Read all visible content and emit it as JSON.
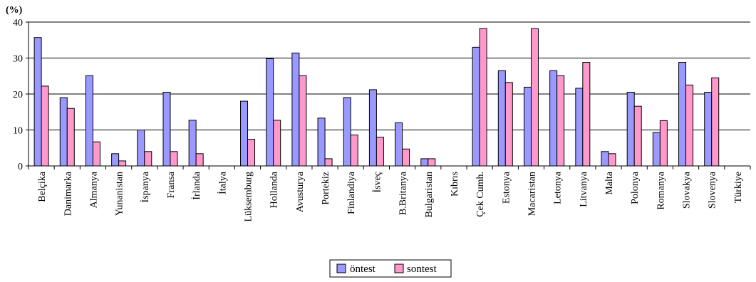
{
  "chart_data": {
    "type": "bar",
    "title": "",
    "xlabel": "",
    "ylabel": "(%)",
    "ylim": [
      0,
      40
    ],
    "yticks": [
      0,
      10,
      20,
      30,
      40
    ],
    "grid": true,
    "legend_position": "bottom-center",
    "categories": [
      "Belçika",
      "Danimarka",
      "Almanya",
      "Yunanistan",
      "İspanya",
      "Fransa",
      "İrlanda",
      "İtalya",
      "Lüksemburg",
      "Hollanda",
      "Avusturya",
      "Portekiz",
      "Finlandiya",
      "İsveç",
      "B.Britanya",
      "Bulgaristan",
      "Kıbrıs",
      "Çek Cumh.",
      "Estonya",
      "Macaristan",
      "Letonya",
      "Litvanya",
      "Malta",
      "Polonya",
      "Romanya",
      "Slovakya",
      "Slovenya",
      "Türkiye"
    ],
    "series": [
      {
        "name": "öntest",
        "color": "#9999ff",
        "values": [
          35.7,
          19.0,
          25.1,
          3.4,
          10.0,
          20.5,
          12.7,
          0,
          18.0,
          29.8,
          31.4,
          13.3,
          19.0,
          21.2,
          12.0,
          2.0,
          0,
          33.0,
          26.5,
          21.9,
          26.5,
          21.6,
          4.0,
          20.5,
          9.3,
          28.8,
          20.5,
          0
        ]
      },
      {
        "name": "sontest",
        "color": "#ff99cc",
        "values": [
          22.2,
          16.0,
          6.7,
          1.4,
          4.0,
          4.0,
          3.4,
          0,
          7.4,
          12.7,
          25.1,
          2.0,
          8.6,
          8.0,
          4.7,
          2.0,
          0,
          38.2,
          23.2,
          38.2,
          25.1,
          28.8,
          3.4,
          16.6,
          12.6,
          22.5,
          24.5,
          0
        ]
      }
    ]
  }
}
